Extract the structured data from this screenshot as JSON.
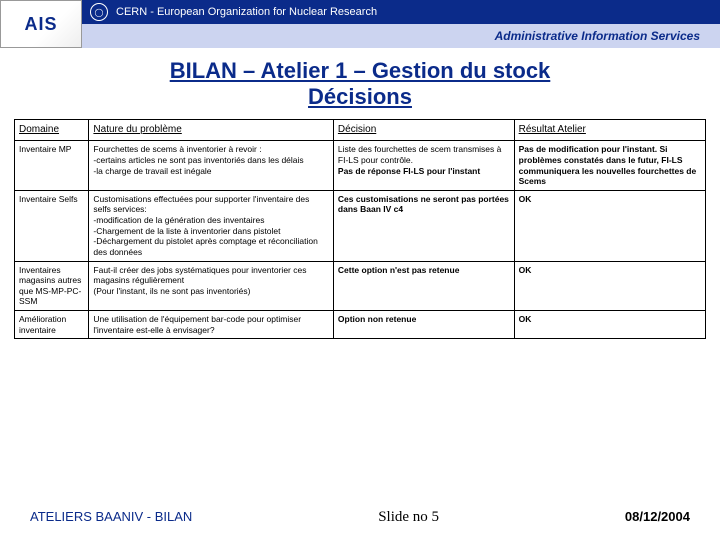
{
  "header": {
    "logo_text": "AIS",
    "cern_text": "CERN - European Organization for Nuclear Research",
    "subtitle": "Administrative Information Services"
  },
  "title_line1": "BILAN – Atelier 1 – Gestion du stock",
  "title_line2": "Décisions",
  "table": {
    "headers": [
      "Domaine",
      "Nature du problème",
      "Décision",
      "Résultat Atelier"
    ],
    "rows": [
      {
        "domaine": "Inventaire MP",
        "probleme": "Fourchettes de scems à inventorier à revoir :\n-certains articles ne sont pas inventoriés dans les délais\n-la charge de travail est inégale",
        "decision": "Liste des fourchettes de scem transmises à FI-LS pour contrôle.\nPas de réponse FI-LS pour l'instant",
        "decision_bold_from": 1,
        "resultat": "Pas de modification pour l'instant. Si problèmes constatés dans le futur, FI-LS communiquera les nouvelles fourchettes de Scems"
      },
      {
        "domaine": "Inventaire Selfs",
        "probleme": "Customisations effectuées pour supporter l'inventaire des selfs services:\n-modification de la génération des inventaires\n-Chargement de la liste à inventorier dans pistolet\n-Déchargement du pistolet après comptage et réconciliation des données",
        "decision": "Ces customisations ne seront pas portées dans Baan IV c4",
        "resultat": "OK"
      },
      {
        "domaine": "Inventaires magasins autres que MS-MP-PC-SSM",
        "probleme": "Faut-il créer des jobs systématiques pour inventorier ces magasins régulièrement\n(Pour l'instant, ils ne sont pas inventoriés)",
        "decision": "Cette option n'est pas retenue",
        "resultat": "OK"
      },
      {
        "domaine": "Amélioration inventaire",
        "probleme": "Une utilisation de l'équipement bar-code pour optimiser l'inventaire est-elle à envisager?",
        "decision": "Option non retenue",
        "resultat": "OK"
      }
    ]
  },
  "footer": {
    "left": "ATELIERS BAANIV - BILAN",
    "center": "Slide no 5",
    "right": "08/12/2004"
  }
}
